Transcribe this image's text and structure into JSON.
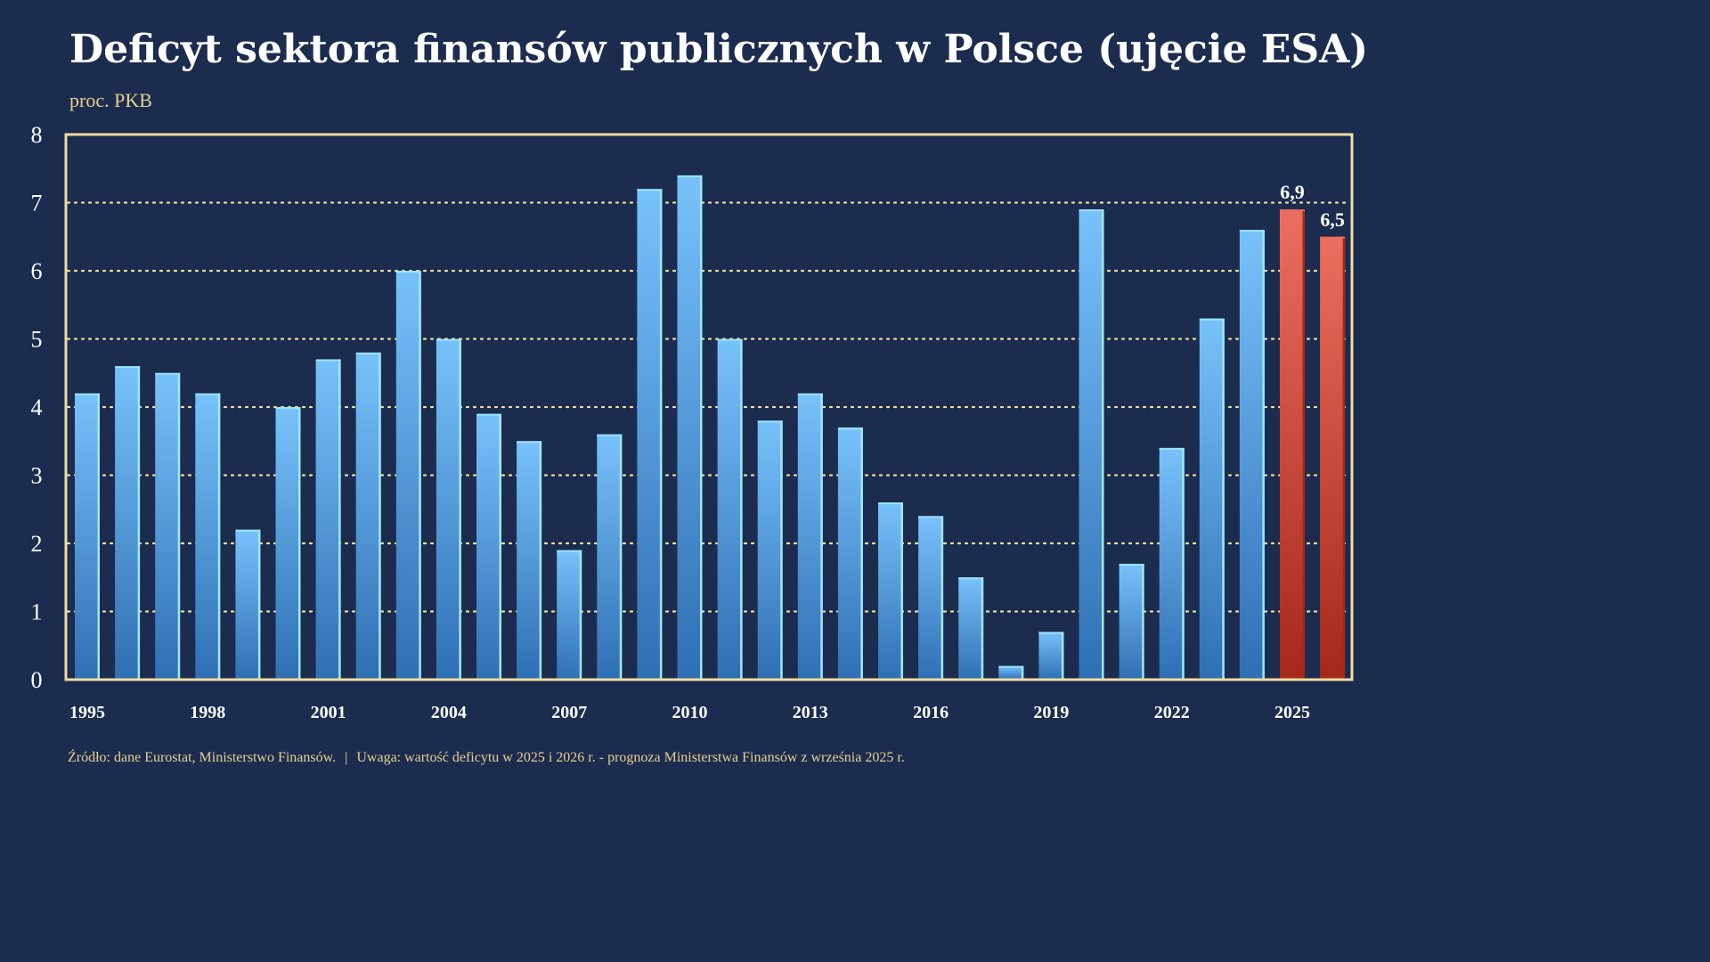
{
  "title": "Deficyt sektora finansów publicznych w Polsce (ujęcie ESA)",
  "subtitle": "proc. PKB",
  "footer": {
    "source": "Źródło: dane Eurostat, Ministerstwo Finansów.",
    "separator": "|",
    "note": "Uwaga: wartość deficytu w 2025 i 2026 r. - prognoza Ministerstwa Finansów z września 2025 r."
  },
  "colors": {
    "background": "#1b2c4f",
    "frame": "#f0dca0",
    "grid": "#f0dca0",
    "bar_top": "#78c2fb",
    "bar_bottom": "#2f6fb4",
    "bar_edge": "#9fe7f8",
    "forecast_top": "#ec6e5c",
    "forecast_bottom": "#a5281a"
  },
  "chart_data": {
    "type": "bar",
    "ylabel": "proc. PKB",
    "ylim": [
      0,
      8
    ],
    "yticks": [
      0,
      1,
      2,
      3,
      4,
      5,
      6,
      7,
      8
    ],
    "grid": "horizontal dotted",
    "categories": [
      "1995",
      "1996",
      "1997",
      "1998",
      "1999",
      "2000",
      "2001",
      "2002",
      "2003",
      "2004",
      "2005",
      "2006",
      "2007",
      "2008",
      "2009",
      "2010",
      "2011",
      "2012",
      "2013",
      "2014",
      "2015",
      "2016",
      "2017",
      "2018",
      "2019",
      "2020",
      "2021",
      "2022",
      "2023",
      "2024",
      "2025",
      "2026"
    ],
    "xtick_labels": [
      "1995",
      "1998",
      "2001",
      "2004",
      "2007",
      "2010",
      "2013",
      "2016",
      "2019",
      "2022",
      "2025"
    ],
    "values": [
      4.2,
      4.6,
      4.5,
      4.2,
      2.2,
      4.0,
      4.7,
      4.8,
      6.0,
      5.0,
      3.9,
      3.5,
      1.9,
      3.6,
      7.2,
      7.4,
      5.0,
      3.8,
      4.2,
      3.7,
      2.6,
      2.4,
      1.5,
      0.2,
      0.7,
      6.9,
      1.7,
      3.4,
      5.3,
      6.6,
      6.9,
      6.5
    ],
    "forecast_categories": [
      "2025",
      "2026"
    ],
    "data_labels": [
      {
        "category": "2025",
        "text": "6,9"
      },
      {
        "category": "2026",
        "text": "6,5"
      }
    ]
  }
}
